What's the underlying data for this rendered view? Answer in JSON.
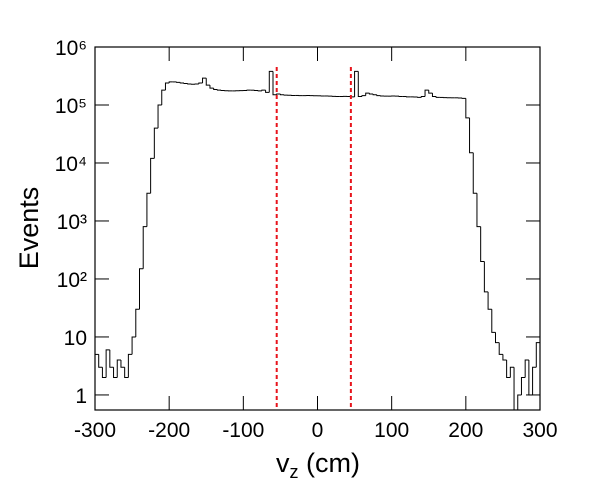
{
  "chart_data": {
    "type": "histogram",
    "x_label": [
      "v",
      "z",
      " (cm)"
    ],
    "y_label": "Events",
    "log_y": true,
    "color": "#000000",
    "cut_lines": [
      -55,
      45
    ],
    "cut_color": "#e8141c",
    "xlim": [
      -300,
      300
    ],
    "ylim": [
      0.55,
      1000000
    ],
    "xticks": [
      -300,
      -200,
      -100,
      0,
      100,
      200,
      300
    ],
    "yticks": [
      1,
      10,
      {
        "value": 100,
        "label": "10²"
      },
      {
        "value": 1000,
        "label": "10³"
      },
      {
        "value": 10000,
        "label": "10⁴"
      },
      {
        "value": 100000,
        "label": "10⁵"
      },
      {
        "value": 1000000,
        "label": "10⁶"
      }
    ],
    "bins": [
      -300,
      -295,
      -290,
      -285,
      -280,
      -275,
      -270,
      -265,
      -260,
      -255,
      -250,
      -245,
      -240,
      -235,
      -230,
      -225,
      -220,
      -215,
      -210,
      -205,
      -200,
      -195,
      -190,
      -185,
      -180,
      -175,
      -170,
      -165,
      -160,
      -155,
      -150,
      -145,
      -140,
      -135,
      -130,
      -125,
      -120,
      -115,
      -110,
      -105,
      -100,
      -95,
      -90,
      -85,
      -80,
      -75,
      -70,
      -65,
      -60,
      -55,
      -50,
      -45,
      -40,
      -35,
      -30,
      -25,
      -20,
      -15,
      -10,
      -5,
      0,
      5,
      10,
      15,
      20,
      25,
      30,
      35,
      40,
      45,
      50,
      55,
      60,
      65,
      70,
      75,
      80,
      85,
      90,
      95,
      100,
      105,
      110,
      115,
      120,
      125,
      130,
      135,
      140,
      145,
      150,
      155,
      160,
      165,
      170,
      175,
      180,
      185,
      190,
      195,
      200,
      205,
      210,
      215,
      220,
      225,
      230,
      235,
      240,
      245,
      250,
      255,
      260,
      265,
      270,
      275,
      280,
      285,
      290,
      295,
      300
    ],
    "values": [
      5,
      3,
      2,
      6,
      3,
      2,
      4,
      3,
      2,
      5,
      10,
      30,
      150,
      800,
      3000,
      12000,
      40000,
      100000,
      180000,
      240000,
      250000,
      250000,
      245000,
      240000,
      235000,
      230000,
      228000,
      230000,
      240000,
      290000,
      220000,
      195000,
      185000,
      180000,
      178000,
      176000,
      175000,
      175000,
      176000,
      177000,
      178000,
      180000,
      180000,
      178000,
      175000,
      180000,
      165000,
      380000,
      150000,
      155000,
      150000,
      148000,
      147000,
      146000,
      146000,
      145000,
      145000,
      146000,
      145000,
      144000,
      144000,
      143000,
      143000,
      142000,
      141000,
      140000,
      140000,
      141000,
      140000,
      138000,
      380000,
      140000,
      145000,
      160000,
      155000,
      150000,
      145000,
      143000,
      142000,
      142000,
      143000,
      142000,
      140000,
      140000,
      138000,
      138000,
      137000,
      135000,
      140000,
      180000,
      160000,
      140000,
      135000,
      135000,
      134000,
      133000,
      133000,
      133000,
      132000,
      130000,
      60000,
      15000,
      3000,
      800,
      200,
      60,
      30,
      12,
      8,
      5,
      4,
      2,
      3,
      0,
      1,
      2,
      4,
      1,
      3,
      8
    ]
  }
}
